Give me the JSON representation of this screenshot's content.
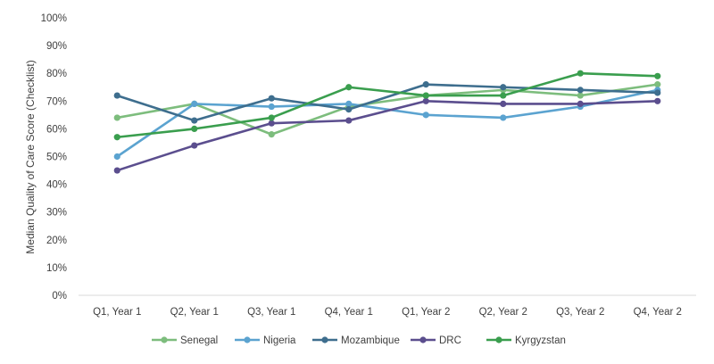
{
  "chart_data": {
    "type": "line",
    "title": "",
    "xlabel": "",
    "ylabel": "Median Quality of Care Score (Checklist)",
    "categories": [
      "Q1, Year 1",
      "Q2, Year 1",
      "Q3, Year 1",
      "Q4, Year 1",
      "Q1, Year 2",
      "Q2, Year 2",
      "Q3, Year 2",
      "Q4, Year 2"
    ],
    "ylim": [
      0,
      100
    ],
    "yticks": [
      "0%",
      "10%",
      "20%",
      "30%",
      "40%",
      "50%",
      "60%",
      "70%",
      "80%",
      "90%",
      "100%"
    ],
    "y_unit": "%",
    "grid": false,
    "legend_position": "bottom",
    "series": [
      {
        "name": "Senegal",
        "color": "#7dbd7d",
        "values": [
          64,
          69,
          58,
          68,
          72,
          74,
          72,
          76
        ]
      },
      {
        "name": "Nigeria",
        "color": "#5ba3d0",
        "values": [
          50,
          69,
          68,
          69,
          65,
          64,
          68,
          74
        ]
      },
      {
        "name": "Mozambique",
        "color": "#3e6e8e",
        "values": [
          72,
          63,
          71,
          67,
          76,
          75,
          74,
          73
        ]
      },
      {
        "name": "DRC",
        "color": "#5b4e8e",
        "values": [
          45,
          54,
          62,
          63,
          70,
          69,
          69,
          70
        ]
      },
      {
        "name": "Kyrgyzstan",
        "color": "#3a9e4e",
        "values": [
          57,
          60,
          64,
          75,
          72,
          72,
          80,
          79
        ]
      }
    ]
  }
}
